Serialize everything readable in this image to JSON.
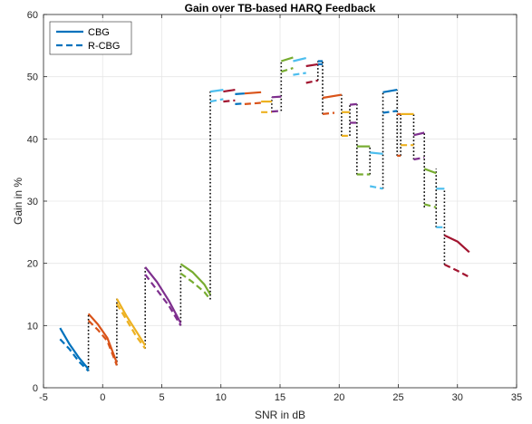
{
  "chart_data": {
    "type": "line",
    "title": "Gain over TB-based HARQ Feedback",
    "xlabel": "SNR in dB",
    "ylabel": "Gain in %",
    "xlim": [
      -5,
      35
    ],
    "ylim": [
      0,
      60
    ],
    "xticks": [
      -5,
      0,
      5,
      10,
      15,
      20,
      25,
      30,
      35
    ],
    "yticks": [
      0,
      10,
      20,
      30,
      40,
      50,
      60
    ],
    "grid": true,
    "legend": {
      "position": "top-left",
      "entries": [
        {
          "name": "CBG",
          "style": "solid"
        },
        {
          "name": "R-CBG",
          "style": "dashed"
        }
      ]
    },
    "series": [
      {
        "name": "CBG",
        "style": "solid",
        "segments": [
          {
            "color": "#0072BD",
            "x": [
              -3.6,
              -2.8,
              -2.0,
              -1.2
            ],
            "y": [
              9.6,
              7.0,
              4.8,
              3.0
            ]
          },
          {
            "color": "#D95319",
            "x": [
              -1.2,
              -0.4,
              0.4,
              1.2
            ],
            "y": [
              11.9,
              10.2,
              8.0,
              4.0
            ]
          },
          {
            "color": "#EDB120",
            "x": [
              1.2,
              2.0,
              2.8,
              3.6
            ],
            "y": [
              14.3,
              11.6,
              9.2,
              6.8
            ]
          },
          {
            "color": "#7E2F8E",
            "x": [
              3.6,
              4.6,
              5.6,
              6.6
            ],
            "y": [
              19.4,
              17.0,
              14.0,
              10.4
            ]
          },
          {
            "color": "#77AC30",
            "x": [
              6.6,
              7.6,
              8.6,
              9.1
            ],
            "y": [
              19.9,
              18.6,
              16.6,
              15.0
            ]
          },
          {
            "color": "#4DBEEE",
            "x": [
              9.1,
              10.2
            ],
            "y": [
              47.6,
              47.9
            ]
          },
          {
            "color": "#A2142F",
            "x": [
              10.2,
              11.2
            ],
            "y": [
              47.6,
              47.9
            ]
          },
          {
            "color": "#0072BD",
            "x": [
              11.2,
              12.0
            ],
            "y": [
              47.2,
              47.3
            ]
          },
          {
            "color": "#D95319",
            "x": [
              12.0,
              13.4
            ],
            "y": [
              47.3,
              47.5
            ]
          },
          {
            "color": "#EDB120",
            "x": [
              13.4,
              14.3
            ],
            "y": [
              46.0,
              46.0
            ]
          },
          {
            "color": "#7E2F8E",
            "x": [
              14.3,
              15.1
            ],
            "y": [
              46.7,
              46.8
            ]
          },
          {
            "color": "#77AC30",
            "x": [
              15.1,
              16.1
            ],
            "y": [
              52.5,
              53.1
            ]
          },
          {
            "color": "#4DBEEE",
            "x": [
              16.1,
              17.2
            ],
            "y": [
              52.5,
              53.0
            ]
          },
          {
            "color": "#A2142F",
            "x": [
              17.2,
              18.2
            ],
            "y": [
              51.7,
              52.0
            ]
          },
          {
            "color": "#0072BD",
            "x": [
              18.2,
              18.6
            ],
            "y": [
              52.5,
              52.5
            ]
          },
          {
            "color": "#D95319",
            "x": [
              18.6,
              20.2
            ],
            "y": [
              46.6,
              47.1
            ]
          },
          {
            "color": "#EDB120",
            "x": [
              20.2,
              20.9
            ],
            "y": [
              44.3,
              44.3
            ]
          },
          {
            "color": "#7E2F8E",
            "x": [
              20.9,
              21.5
            ],
            "y": [
              45.5,
              45.6
            ]
          },
          {
            "color": "#77AC30",
            "x": [
              21.5,
              22.6
            ],
            "y": [
              38.8,
              38.8
            ]
          },
          {
            "color": "#4DBEEE",
            "x": [
              22.6,
              23.7
            ],
            "y": [
              37.8,
              37.6
            ]
          },
          {
            "color": "#0072BD",
            "x": [
              23.7,
              24.9
            ],
            "y": [
              47.5,
              47.9
            ]
          },
          {
            "color": "#D95319",
            "x": [
              24.9,
              25.2
            ],
            "y": [
              44.0,
              44.0
            ]
          },
          {
            "color": "#EDB120",
            "x": [
              25.2,
              26.3
            ],
            "y": [
              44.0,
              44.0
            ]
          },
          {
            "color": "#7E2F8E",
            "x": [
              26.3,
              27.2
            ],
            "y": [
              40.6,
              41.0
            ]
          },
          {
            "color": "#77AC30",
            "x": [
              27.2,
              28.2
            ],
            "y": [
              35.2,
              34.5
            ]
          },
          {
            "color": "#4DBEEE",
            "x": [
              28.2,
              28.9
            ],
            "y": [
              32.0,
              32.0
            ]
          },
          {
            "color": "#A2142F",
            "x": [
              28.9,
              30.0,
              31.0
            ],
            "y": [
              24.5,
              23.5,
              21.8
            ]
          }
        ]
      },
      {
        "name": "R-CBG",
        "style": "dashed",
        "segments": [
          {
            "color": "#0072BD",
            "x": [
              -3.6,
              -2.8,
              -2.0,
              -1.2
            ],
            "y": [
              7.8,
              6.2,
              4.2,
              2.7
            ]
          },
          {
            "color": "#D95319",
            "x": [
              -1.2,
              -0.4,
              0.4,
              1.2
            ],
            "y": [
              10.8,
              9.3,
              7.5,
              3.6
            ]
          },
          {
            "color": "#EDB120",
            "x": [
              1.2,
              2.0,
              2.8,
              3.6
            ],
            "y": [
              13.5,
              11.0,
              8.4,
              6.3
            ]
          },
          {
            "color": "#7E2F8E",
            "x": [
              3.6,
              4.6,
              5.6,
              6.6
            ],
            "y": [
              18.2,
              15.7,
              13.2,
              10.0
            ]
          },
          {
            "color": "#77AC30",
            "x": [
              6.6,
              7.6,
              8.6,
              9.1
            ],
            "y": [
              18.4,
              17.0,
              15.4,
              14.2
            ]
          },
          {
            "color": "#4DBEEE",
            "x": [
              9.1,
              10.2
            ],
            "y": [
              46.0,
              46.4
            ]
          },
          {
            "color": "#A2142F",
            "x": [
              10.2,
              11.2
            ],
            "y": [
              46.0,
              46.2
            ]
          },
          {
            "color": "#0072BD",
            "x": [
              11.2,
              12.0
            ],
            "y": [
              45.6,
              45.7
            ]
          },
          {
            "color": "#D95319",
            "x": [
              12.0,
              13.4
            ],
            "y": [
              45.6,
              45.8
            ]
          },
          {
            "color": "#EDB120",
            "x": [
              13.4,
              14.3
            ],
            "y": [
              44.3,
              44.3
            ]
          },
          {
            "color": "#7E2F8E",
            "x": [
              14.3,
              15.1
            ],
            "y": [
              44.4,
              44.5
            ]
          },
          {
            "color": "#77AC30",
            "x": [
              15.1,
              16.1
            ],
            "y": [
              50.8,
              51.4
            ]
          },
          {
            "color": "#4DBEEE",
            "x": [
              16.1,
              17.2
            ],
            "y": [
              50.3,
              50.6
            ]
          },
          {
            "color": "#A2142F",
            "x": [
              17.2,
              18.2
            ],
            "y": [
              49.0,
              49.4
            ]
          },
          {
            "color": "#0072BD",
            "x": [
              18.2,
              18.6
            ],
            "y": [
              52.0,
              52.0
            ]
          },
          {
            "color": "#D95319",
            "x": [
              18.6,
              19.6
            ],
            "y": [
              44.0,
              44.2
            ]
          },
          {
            "color": "#EDB120",
            "x": [
              20.2,
              20.9
            ],
            "y": [
              40.5,
              40.5
            ]
          },
          {
            "color": "#7E2F8E",
            "x": [
              20.9,
              21.5
            ],
            "y": [
              42.6,
              42.6
            ]
          },
          {
            "color": "#77AC30",
            "x": [
              21.5,
              22.6
            ],
            "y": [
              34.3,
              34.3
            ]
          },
          {
            "color": "#4DBEEE",
            "x": [
              22.6,
              23.7
            ],
            "y": [
              32.4,
              32.0
            ]
          },
          {
            "color": "#0072BD",
            "x": [
              23.7,
              24.9
            ],
            "y": [
              44.2,
              44.5
            ]
          },
          {
            "color": "#D95319",
            "x": [
              24.9,
              25.2
            ],
            "y": [
              37.3,
              37.3
            ]
          },
          {
            "color": "#EDB120",
            "x": [
              25.2,
              26.3
            ],
            "y": [
              39.0,
              39.0
            ]
          },
          {
            "color": "#7E2F8E",
            "x": [
              26.3,
              27.2
            ],
            "y": [
              36.7,
              37.0
            ]
          },
          {
            "color": "#77AC30",
            "x": [
              27.2,
              28.2
            ],
            "y": [
              29.5,
              29.0
            ]
          },
          {
            "color": "#4DBEEE",
            "x": [
              28.2,
              28.9
            ],
            "y": [
              25.8,
              25.8
            ]
          },
          {
            "color": "#A2142F",
            "x": [
              28.9,
              30.0,
              31.0
            ],
            "y": [
              19.8,
              18.8,
              17.8
            ]
          }
        ]
      }
    ],
    "dotted_connectors": {
      "color": "#000000",
      "x": [
        -1.2,
        1.2,
        3.6,
        6.6,
        9.1,
        14.3,
        15.1,
        18.2,
        18.6,
        20.2,
        20.9,
        21.5,
        22.6,
        23.7,
        24.9,
        25.2,
        26.3,
        27.2,
        28.2,
        28.9
      ],
      "y_low": [
        2.7,
        3.6,
        6.3,
        10.0,
        14.2,
        44.3,
        44.5,
        49.4,
        44.0,
        40.5,
        40.5,
        34.3,
        34.3,
        32.0,
        37.3,
        37.3,
        36.7,
        29.0,
        25.8,
        19.8
      ],
      "y_high": [
        11.9,
        14.3,
        19.4,
        19.9,
        47.6,
        46.7,
        52.5,
        52.5,
        52.5,
        47.1,
        45.6,
        45.6,
        38.8,
        47.5,
        47.9,
        44.0,
        44.0,
        41.0,
        35.2,
        32.0
      ]
    }
  }
}
